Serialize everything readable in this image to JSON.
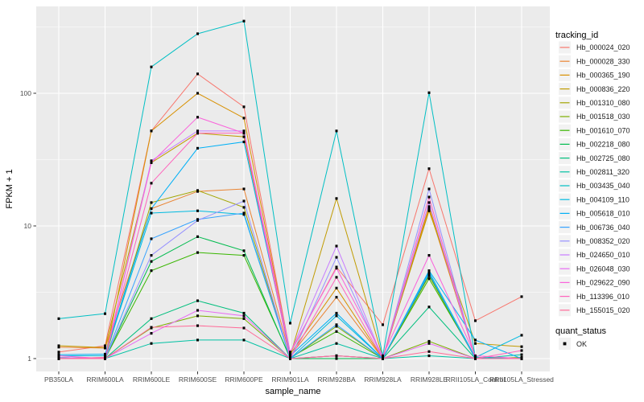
{
  "figure": {
    "background": "#FFFFFF",
    "panel_background": "#EBEBEB",
    "grid_color": "#FFFFFF",
    "tick_color": "#333333",
    "tick_label_color": "#4D4D4D",
    "point_color": "#000000"
  },
  "chart_data": {
    "type": "line",
    "title": "",
    "xlabel": "sample_name",
    "ylabel": "FPKM + 1",
    "y_scale": "log10",
    "y_axis_breaks": [
      1,
      10,
      100
    ],
    "y_tick_labels": [
      "1",
      "10",
      "100"
    ],
    "y_minor_breaks": [
      3.1623,
      31.623,
      316.23
    ],
    "grid": true,
    "legend_position": "right",
    "categories": [
      "PB350LA",
      "RRIM600LA",
      "RRIM600LE",
      "RRIM600SE",
      "RRIM600PE",
      "RRIM901LA",
      "RRIM928BA",
      "RRIM928LA",
      "RRIM928LE",
      "RRII105LA_Control",
      "RRII105LA_Stressed"
    ],
    "series": [
      {
        "name": "Hb_000024_020",
        "color": "#F8766D",
        "values": [
          1.12,
          1.25,
          52,
          140,
          79,
          1.1,
          4.9,
          1.8,
          27,
          1.93,
          2.93
        ]
      },
      {
        "name": "Hb_000028_330",
        "color": "#EA8331",
        "values": [
          1.22,
          1.2,
          13.5,
          18.2,
          19,
          1.05,
          2.9,
          1.0,
          13.5,
          1.02,
          1.0
        ]
      },
      {
        "name": "Hb_000365_190",
        "color": "#D89000",
        "values": [
          1.0,
          1.02,
          52,
          100,
          65,
          1.08,
          3.4,
          1.0,
          14,
          1.02,
          1.0
        ]
      },
      {
        "name": "Hb_000836_220",
        "color": "#C09B00",
        "values": [
          1.25,
          1.21,
          30,
          50,
          47,
          1.05,
          16.1,
          1.02,
          13,
          1.3,
          1.23
        ]
      },
      {
        "name": "Hb_001310_080",
        "color": "#A3A500",
        "values": [
          1.0,
          1.0,
          15,
          18.5,
          13.8,
          1.0,
          1.05,
          1.0,
          4.2,
          1.0,
          1.0
        ]
      },
      {
        "name": "Hb_001518_030",
        "color": "#7CAE00",
        "values": [
          1.02,
          1.0,
          1.7,
          2.1,
          2.0,
          1.0,
          1.75,
          1.0,
          1.35,
          1.0,
          1.02
        ]
      },
      {
        "name": "Hb_001610_070",
        "color": "#39B600",
        "values": [
          1.0,
          1.0,
          4.6,
          6.3,
          6.0,
          1.02,
          1.6,
          1.0,
          4.0,
          1.02,
          1.0
        ]
      },
      {
        "name": "Hb_002218_080",
        "color": "#00BB4E",
        "values": [
          1.0,
          1.0,
          5.4,
          8.3,
          6.5,
          1.0,
          1.0,
          1.0,
          4.3,
          1.0,
          1.0
        ]
      },
      {
        "name": "Hb_002725_080",
        "color": "#00BF7D",
        "values": [
          1.02,
          1.0,
          2.0,
          2.73,
          2.2,
          1.0,
          1.05,
          1.0,
          2.45,
          1.0,
          1.0
        ]
      },
      {
        "name": "Hb_002811_320",
        "color": "#00C1A3",
        "values": [
          1.0,
          1.0,
          1.3,
          1.38,
          1.38,
          1.0,
          1.3,
          1.0,
          1.05,
          1.0,
          1.07
        ]
      },
      {
        "name": "Hb_003435_040",
        "color": "#00BFC4",
        "values": [
          2.0,
          2.18,
          158,
          281,
          350,
          1.85,
          52,
          1.05,
          101,
          1.02,
          1.0
        ]
      },
      {
        "name": "Hb_004109_110",
        "color": "#00BAE0",
        "values": [
          1.05,
          1.05,
          12.5,
          13.0,
          12.2,
          1.0,
          2.1,
          1.0,
          4.5,
          1.02,
          1.5
        ]
      },
      {
        "name": "Hb_005618_010",
        "color": "#00B0F6",
        "values": [
          1.07,
          1.08,
          13.5,
          38.5,
          43,
          1.05,
          2.2,
          1.0,
          4.6,
          1.38,
          1.0
        ]
      },
      {
        "name": "Hb_006736_040",
        "color": "#35A2FF",
        "values": [
          1.0,
          1.0,
          8.0,
          11.2,
          12.5,
          1.0,
          1.8,
          1.0,
          4.4,
          1.0,
          1.0
        ]
      },
      {
        "name": "Hb_008352_020",
        "color": "#9590FF",
        "values": [
          1.0,
          1.0,
          6.0,
          11.0,
          15.4,
          1.0,
          5.8,
          1.0,
          19,
          1.0,
          1.0
        ]
      },
      {
        "name": "Hb_024650_010",
        "color": "#C77CFF",
        "values": [
          1.02,
          1.0,
          31,
          52,
          52,
          1.1,
          7.05,
          1.0,
          15,
          1.0,
          1.0
        ]
      },
      {
        "name": "Hb_026048_030",
        "color": "#E76BF3",
        "values": [
          1.0,
          1.0,
          1.55,
          2.31,
          2.1,
          1.0,
          1.05,
          1.0,
          1.3,
          1.0,
          1.0
        ]
      },
      {
        "name": "Hb_029622_090",
        "color": "#FA62DB",
        "values": [
          1.05,
          1.0,
          30,
          66,
          50,
          1.12,
          4.8,
          1.05,
          6.0,
          1.05,
          1.0
        ]
      },
      {
        "name": "Hb_113396_010",
        "color": "#FF62BC",
        "values": [
          1.0,
          1.02,
          21,
          50,
          50,
          1.0,
          4.1,
          1.0,
          16.5,
          1.0,
          1.15
        ]
      },
      {
        "name": "Hb_155015_020",
        "color": "#FF6A98",
        "values": [
          1.0,
          1.0,
          1.72,
          1.77,
          1.7,
          1.0,
          1.05,
          1.0,
          1.13,
          1.0,
          1.0
        ]
      }
    ],
    "legend": {
      "tracking_title": "tracking_id",
      "quant_title": "quant_status",
      "quant_value": "OK"
    }
  }
}
